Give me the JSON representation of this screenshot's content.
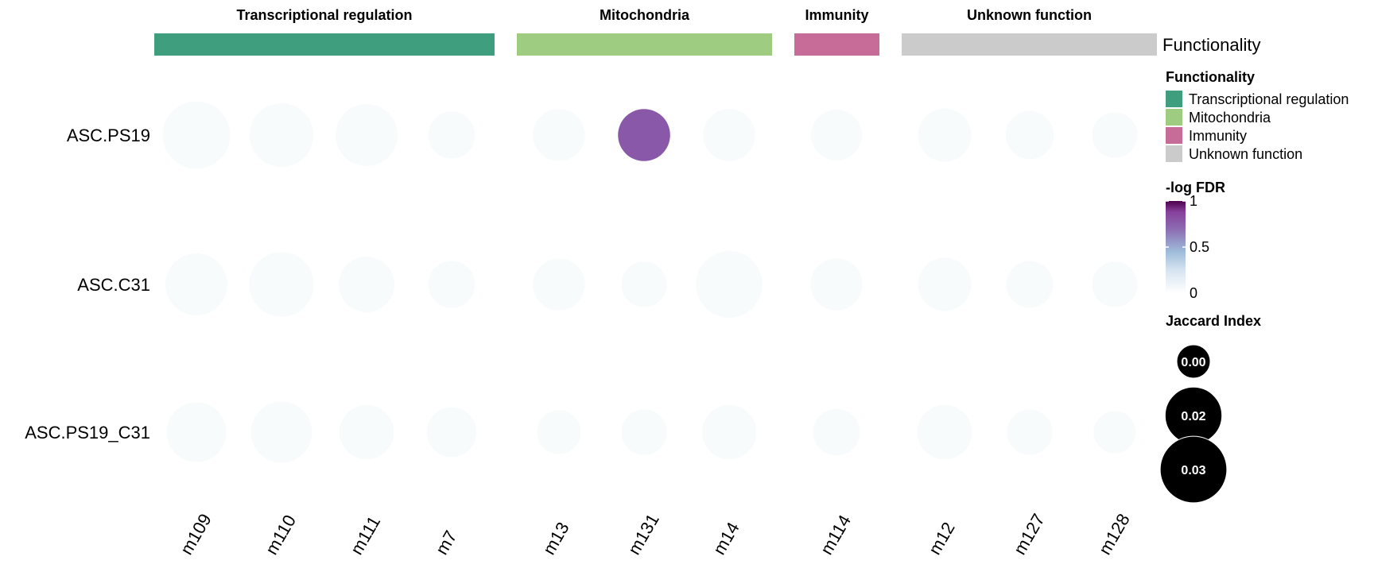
{
  "chart_data": {
    "type": "scatter",
    "title": "",
    "xlabel": "",
    "ylabel": "",
    "rows": [
      "ASC.PS19",
      "ASC.C31",
      "ASC.PS19_C31"
    ],
    "columns": [
      "m109",
      "m110",
      "m111",
      "m7",
      "m13",
      "m131",
      "m14",
      "m114",
      "m12",
      "m127",
      "m128"
    ],
    "groups": [
      {
        "name": "Transcriptional regulation",
        "color": "#3E9E7E",
        "columns": [
          "m109",
          "m110",
          "m111",
          "m7"
        ]
      },
      {
        "name": "Mitochondria",
        "color": "#9ECD82",
        "columns": [
          "m13",
          "m131",
          "m14"
        ]
      },
      {
        "name": "Immunity",
        "color": "#C76B99",
        "columns": [
          "m114"
        ]
      },
      {
        "name": "Unknown function",
        "color": "#CBCBCB",
        "columns": [
          "m12",
          "m127",
          "m128"
        ]
      }
    ],
    "annotation_label": "Functionality",
    "jaccard": [
      [
        0.031,
        0.027,
        0.025,
        0.012,
        0.016,
        0.016,
        0.016,
        0.015,
        0.017,
        0.013,
        0.011
      ],
      [
        0.025,
        0.028,
        0.019,
        0.012,
        0.016,
        0.011,
        0.03,
        0.016,
        0.017,
        0.012,
        0.011
      ],
      [
        0.023,
        0.024,
        0.018,
        0.014,
        0.01,
        0.011,
        0.018,
        0.012,
        0.018,
        0.011,
        0.009
      ]
    ],
    "neg_log_fdr": [
      [
        0.02,
        0.02,
        0.02,
        0.02,
        0.02,
        0.78,
        0.02,
        0.02,
        0.02,
        0.02,
        0.02
      ],
      [
        0.02,
        0.02,
        0.02,
        0.02,
        0.02,
        0.02,
        0.02,
        0.02,
        0.02,
        0.02,
        0.02
      ],
      [
        0.02,
        0.02,
        0.02,
        0.02,
        0.02,
        0.02,
        0.02,
        0.02,
        0.02,
        0.02,
        0.02
      ]
    ],
    "legend": {
      "functionality_title": "Functionality",
      "fdr_title": "-log FDR",
      "fdr_ticks": [
        "1",
        "0.5",
        "0"
      ],
      "fdr_range": [
        0,
        1
      ],
      "fdr_colors": [
        "#FFFFFF",
        "#9EBCDA",
        "#8C6BB1",
        "#88419D",
        "#4D004B"
      ],
      "jaccard_title": "Jaccard Index",
      "jaccard_values": [
        0.0,
        0.02,
        0.03
      ],
      "jaccard_labels": [
        "0.00",
        "0.02",
        "0.03"
      ],
      "jaccard_color": "#000000"
    },
    "legend_placement": "right",
    "grid": false
  }
}
